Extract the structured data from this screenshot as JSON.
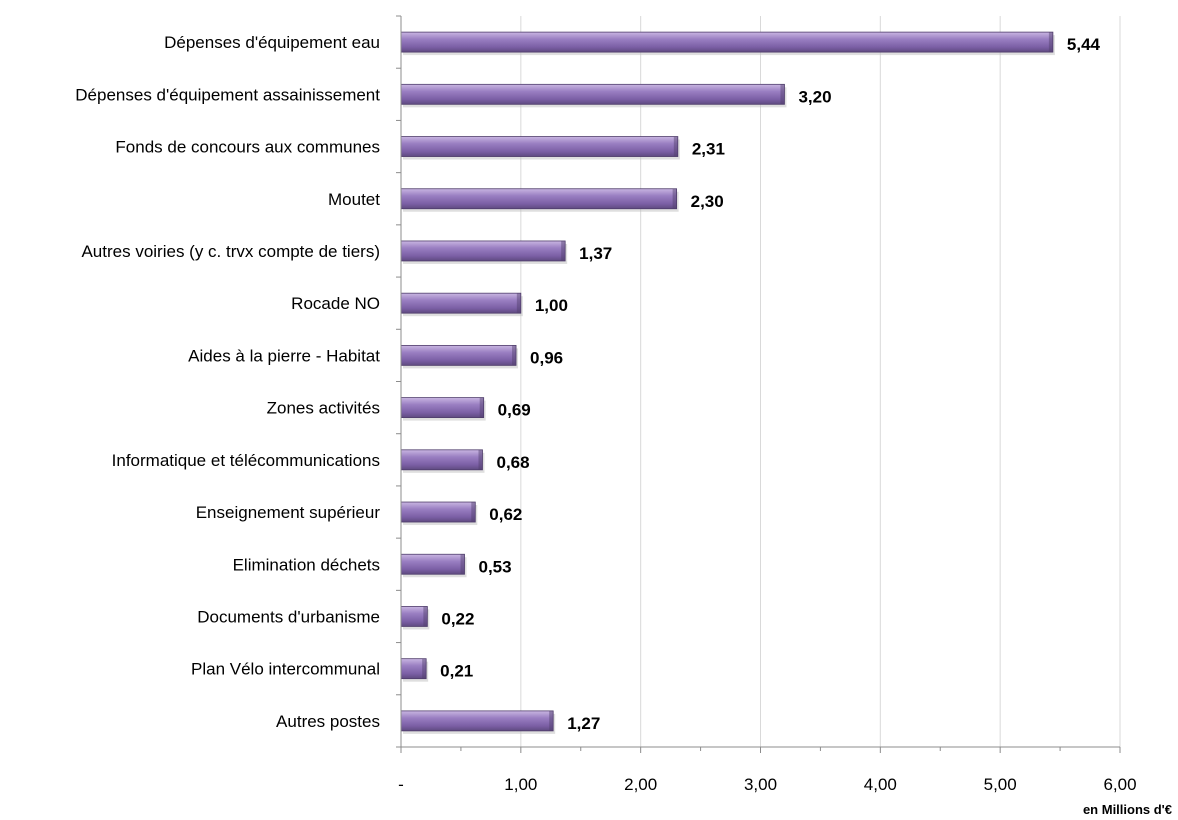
{
  "chart_data": {
    "type": "bar",
    "orientation": "horizontal",
    "categories": [
      "Dépenses d'équipement eau",
      "Dépenses d'équipement assainissement",
      "Fonds de concours aux communes",
      "Moutet",
      "Autres voiries (y c. trvx compte de tiers)",
      "Rocade NO",
      "Aides à la pierre - Habitat",
      "Zones activités",
      "Informatique et télécommunications",
      "Enseignement supérieur",
      "Elimination déchets",
      "Documents d'urbanisme",
      "Plan Vélo intercommunal",
      "Autres postes"
    ],
    "values": [
      5.44,
      3.2,
      2.31,
      2.3,
      1.37,
      1.0,
      0.96,
      0.69,
      0.68,
      0.62,
      0.53,
      0.22,
      0.21,
      1.27
    ],
    "value_labels": [
      "5,44",
      "3,20",
      "2,31",
      "2,30",
      "1,37",
      "1,00",
      "0,96",
      "0,69",
      "0,68",
      "0,62",
      "0,53",
      "0,22",
      "0,21",
      "1,27"
    ],
    "x_ticks": [
      0,
      1,
      2,
      3,
      4,
      5,
      6
    ],
    "x_tick_labels": [
      "-",
      "1,00",
      "2,00",
      "3,00",
      "4,00",
      "5,00",
      "6,00"
    ],
    "xlim": [
      0,
      6
    ],
    "xlabel": "en Millions d'€",
    "ylabel": "",
    "title": "",
    "grid": true,
    "bar_color": "#8064a2",
    "bar_color_light": "#c7b4e0",
    "bar_color_dark": "#5f4a80"
  }
}
